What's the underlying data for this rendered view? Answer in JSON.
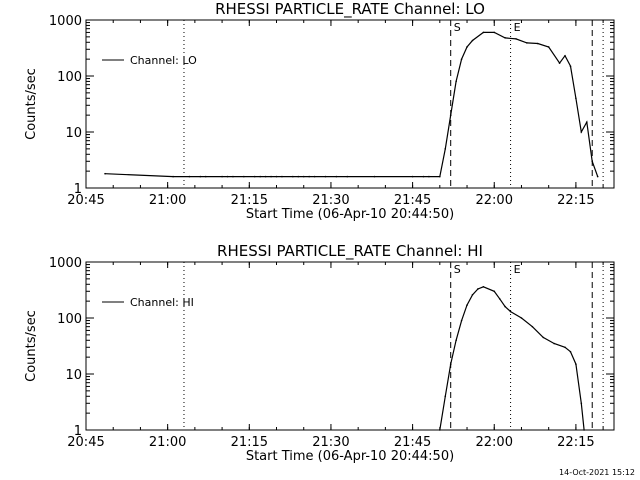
{
  "chart_data": [
    {
      "type": "line",
      "title": "RHESSI PARTICLE_RATE Channel: LO",
      "xlabel": "Start Time (06-Apr-10 20:44:50)",
      "ylabel": "Counts/sec",
      "y_scale": "log",
      "ylim": [
        1,
        1000
      ],
      "xlim": [
        "20:45",
        "22:22"
      ],
      "x_ticks": [
        "20:45",
        "21:00",
        "21:15",
        "21:30",
        "21:45",
        "22:00",
        "22:15"
      ],
      "y_ticks": [
        "1",
        "10",
        "100",
        "1000"
      ],
      "legend": {
        "entries": [
          "Channel: LO"
        ],
        "placement": "top-left"
      },
      "grid": false,
      "vertical_markers": [
        {
          "time": "21:03",
          "style": "dotted",
          "label": ""
        },
        {
          "time": "21:52",
          "style": "dashed",
          "label": "S"
        },
        {
          "time": "22:03",
          "style": "dotted",
          "label": "E"
        },
        {
          "time": "22:18",
          "style": "dashed",
          "label": ""
        },
        {
          "time": "22:20",
          "style": "dotted",
          "label": ""
        }
      ],
      "series": [
        {
          "name": "Channel: LO",
          "points": [
            [
              "20:48:30",
              1.8
            ],
            [
              "21:01",
              1.6
            ],
            [
              "21:04",
              1.6
            ],
            [
              "21:06",
              1.6
            ],
            [
              "21:07",
              1.6
            ],
            [
              "21:10",
              1.6
            ],
            [
              "21:11",
              1.6
            ],
            [
              "21:12",
              1.6
            ],
            [
              "21:14",
              1.6
            ],
            [
              "21:16",
              1.6
            ],
            [
              "21:17",
              1.6
            ],
            [
              "21:18",
              1.6
            ],
            [
              "21:19",
              1.6
            ],
            [
              "21:20",
              1.6
            ],
            [
              "21:21",
              1.6
            ],
            [
              "21:23",
              1.6
            ],
            [
              "21:24",
              1.6
            ],
            [
              "21:25",
              1.6
            ],
            [
              "21:26",
              1.6
            ],
            [
              "21:27",
              1.6
            ],
            [
              "21:29",
              1.6
            ],
            [
              "21:31",
              1.6
            ],
            [
              "21:33",
              1.6
            ],
            [
              "21:38",
              1.6
            ],
            [
              "21:45",
              1.6
            ],
            [
              "21:47",
              1.6
            ],
            [
              "21:48",
              1.6
            ],
            [
              "21:50",
              1.6
            ],
            [
              "21:51",
              5
            ],
            [
              "21:52",
              20
            ],
            [
              "21:53",
              80
            ],
            [
              "21:54",
              200
            ],
            [
              "21:55",
              330
            ],
            [
              "21:56",
              430
            ],
            [
              "21:58",
              600
            ],
            [
              "22:00",
              600
            ],
            [
              "22:02",
              480
            ],
            [
              "22:04",
              460
            ],
            [
              "22:06",
              390
            ],
            [
              "22:08",
              380
            ],
            [
              "22:10",
              330
            ],
            [
              "22:12",
              170
            ],
            [
              "22:13",
              230
            ],
            [
              "22:14",
              150
            ],
            [
              "22:15",
              40
            ],
            [
              "22:16",
              10
            ],
            [
              "22:17",
              15
            ],
            [
              "22:18",
              3
            ],
            [
              "22:19",
              1.6
            ]
          ]
        }
      ]
    },
    {
      "type": "line",
      "title": "RHESSI PARTICLE_RATE Channel: HI",
      "xlabel": "Start Time (06-Apr-10 20:44:50)",
      "ylabel": "Counts/sec",
      "y_scale": "log",
      "ylim": [
        1,
        1000
      ],
      "xlim": [
        "20:45",
        "22:22"
      ],
      "x_ticks": [
        "20:45",
        "21:00",
        "21:15",
        "21:30",
        "21:45",
        "22:00",
        "22:15"
      ],
      "y_ticks": [
        "1",
        "10",
        "100",
        "1000"
      ],
      "legend": {
        "entries": [
          "Channel: HI"
        ],
        "placement": "top-left"
      },
      "grid": false,
      "vertical_markers": [
        {
          "time": "21:03",
          "style": "dotted",
          "label": ""
        },
        {
          "time": "21:52",
          "style": "dashed",
          "label": "S"
        },
        {
          "time": "22:03",
          "style": "dotted",
          "label": "E"
        },
        {
          "time": "22:18",
          "style": "dashed",
          "label": ""
        },
        {
          "time": "22:20",
          "style": "dotted",
          "label": ""
        }
      ],
      "series": [
        {
          "name": "Channel: HI",
          "points": [
            [
              "21:50",
              1
            ],
            [
              "21:51",
              4
            ],
            [
              "21:52",
              15
            ],
            [
              "21:53",
              40
            ],
            [
              "21:54",
              90
            ],
            [
              "21:55",
              170
            ],
            [
              "21:56",
              260
            ],
            [
              "21:57",
              330
            ],
            [
              "21:58",
              360
            ],
            [
              "22:00",
              300
            ],
            [
              "22:01",
              220
            ],
            [
              "22:02",
              160
            ],
            [
              "22:03",
              130
            ],
            [
              "22:05",
              100
            ],
            [
              "22:07",
              70
            ],
            [
              "22:09",
              45
            ],
            [
              "22:11",
              35
            ],
            [
              "22:13",
              30
            ],
            [
              "22:14",
              25
            ],
            [
              "22:15",
              15
            ],
            [
              "22:16",
              3
            ],
            [
              "22:16:30",
              1
            ]
          ]
        }
      ]
    }
  ],
  "footer": {
    "timestamp": "14-Oct-2021 15:12"
  }
}
